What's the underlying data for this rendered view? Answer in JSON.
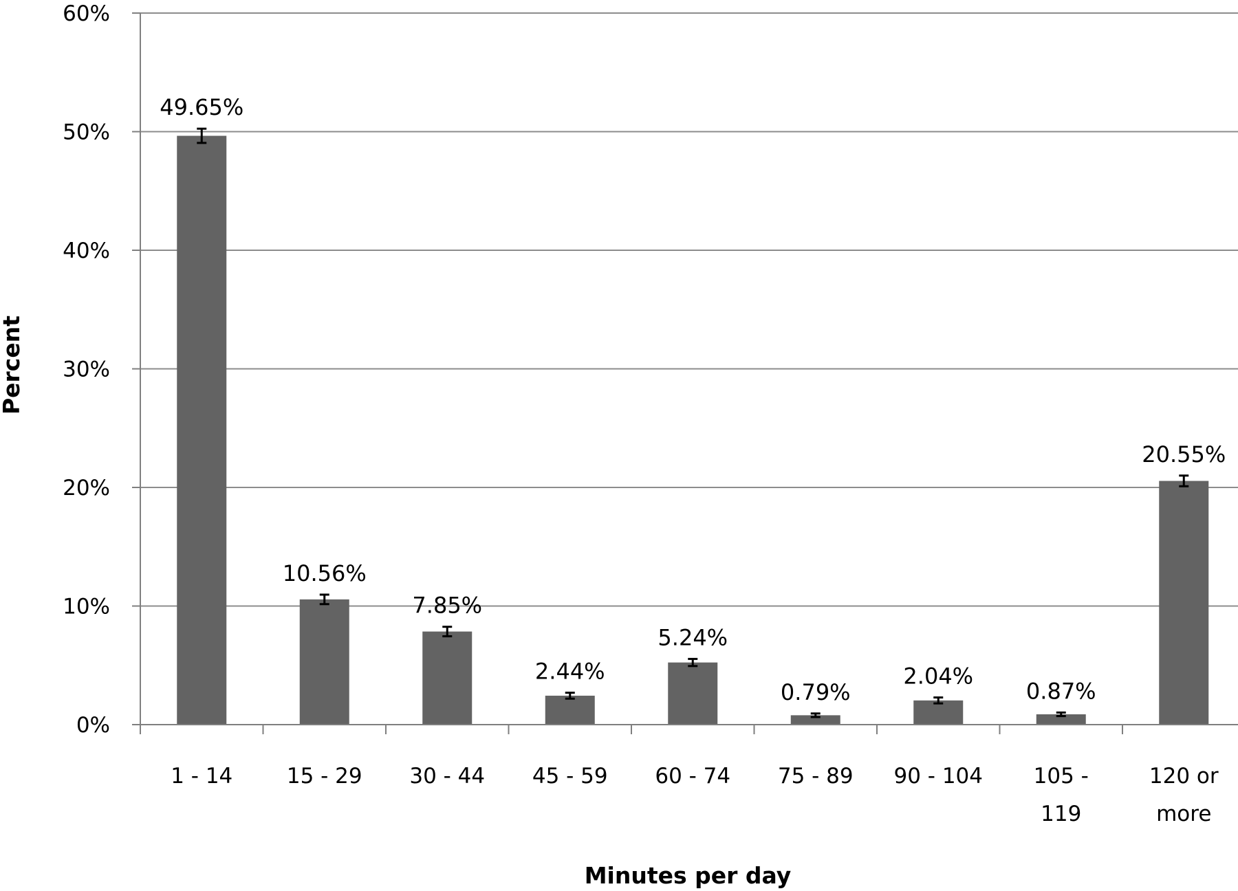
{
  "chart_data": {
    "type": "bar",
    "title": "",
    "xlabel": "Minutes per day",
    "ylabel": "Percent",
    "categories": [
      [
        "1 - 14"
      ],
      [
        "15 - 29"
      ],
      [
        "30 - 44"
      ],
      [
        "45 - 59"
      ],
      [
        "60 - 74"
      ],
      [
        "75 - 89"
      ],
      [
        "90 - 104"
      ],
      [
        "105 -",
        "119"
      ],
      [
        "120 or",
        "more"
      ]
    ],
    "values": [
      49.65,
      10.56,
      7.85,
      2.44,
      5.24,
      0.79,
      2.04,
      0.87,
      20.55
    ],
    "data_labels": [
      "49.65%",
      "10.56%",
      "7.85%",
      "2.44%",
      "5.24%",
      "0.79%",
      "2.04%",
      "0.87%",
      "20.55%"
    ],
    "error_bars": [
      0.6,
      0.4,
      0.4,
      0.25,
      0.3,
      0.15,
      0.25,
      0.15,
      0.45
    ],
    "ylim": [
      0,
      60
    ],
    "yticks": [
      0,
      10,
      20,
      30,
      40,
      50,
      60
    ],
    "ytick_labels": [
      "0%",
      "10%",
      "20%",
      "30%",
      "40%",
      "50%",
      "60%"
    ],
    "grid": true,
    "legend": "none",
    "colors": {
      "bar": "#636363",
      "grid": "#8c8c8c",
      "axis": "#7f7f7f",
      "error_bar": "#000000"
    }
  }
}
